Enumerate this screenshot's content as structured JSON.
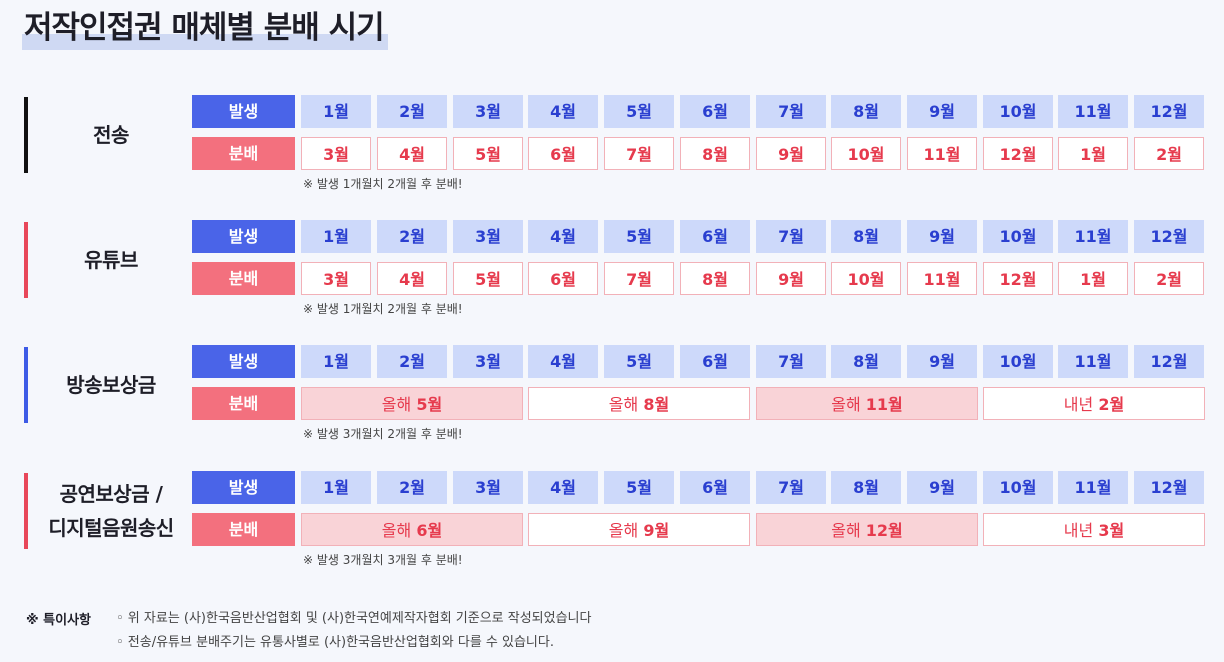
{
  "title": "저작인접권 매체별 분배 시기",
  "colors": {
    "occurrence": "#4a64e8",
    "distribution": "#f3707e",
    "occ_cell": "#cdd9fa",
    "dist_text": "#e63a4d"
  },
  "row_labels": {
    "occurrence": "발생",
    "distribution": "분배"
  },
  "sections": [
    {
      "label": "전송",
      "bar_color": "#111111",
      "occurrence": [
        "1월",
        "2월",
        "3월",
        "4월",
        "5월",
        "6월",
        "7월",
        "8월",
        "9월",
        "10월",
        "11월",
        "12월"
      ],
      "distribution": [
        "3월",
        "4월",
        "5월",
        "6월",
        "7월",
        "8월",
        "9월",
        "10월",
        "11월",
        "12월",
        "1월",
        "2월"
      ],
      "note": "※ 발생 1개월치 2개월 후 분배!"
    },
    {
      "label": "유튜브",
      "bar_color": "#e8475a",
      "occurrence": [
        "1월",
        "2월",
        "3월",
        "4월",
        "5월",
        "6월",
        "7월",
        "8월",
        "9월",
        "10월",
        "11월",
        "12월"
      ],
      "distribution": [
        "3월",
        "4월",
        "5월",
        "6월",
        "7월",
        "8월",
        "9월",
        "10월",
        "11월",
        "12월",
        "1월",
        "2월"
      ],
      "note": "※ 발생 1개월치 2개월 후 분배!"
    },
    {
      "label": "방송보상금",
      "bar_color": "#3d5be6",
      "occurrence": [
        "1월",
        "2월",
        "3월",
        "4월",
        "5월",
        "6월",
        "7월",
        "8월",
        "9월",
        "10월",
        "11월",
        "12월"
      ],
      "distribution_spans": [
        {
          "prefix": "올해 ",
          "month": "5월"
        },
        {
          "prefix": "올해 ",
          "month": "8월"
        },
        {
          "prefix": "올해 ",
          "month": "11월"
        },
        {
          "prefix": "내년 ",
          "month": "2월"
        }
      ],
      "note": "※ 발생 3개월치 2개월 후 분배!"
    },
    {
      "label": "공연보상금 /\n디지털음원송신",
      "bar_color": "#e8475a",
      "occurrence": [
        "1월",
        "2월",
        "3월",
        "4월",
        "5월",
        "6월",
        "7월",
        "8월",
        "9월",
        "10월",
        "11월",
        "12월"
      ],
      "distribution_spans": [
        {
          "prefix": "올해 ",
          "month": "6월"
        },
        {
          "prefix": "올해 ",
          "month": "9월"
        },
        {
          "prefix": "올해 ",
          "month": "12월"
        },
        {
          "prefix": "내년 ",
          "month": "3월"
        }
      ],
      "note": "※ 발생 3개월치 3개월 후 분배!"
    }
  ],
  "remarks": {
    "title": "※ 특이사항",
    "items": [
      "◦ 위 자료는 (사)한국음반산업협회 및 (사)한국연예제작자협회 기준으로 작성되었습니다",
      "◦ 전송/유튜브 분배주기는 유통사별로 (사)한국음반산업협회와 다를 수 있습니다."
    ]
  }
}
